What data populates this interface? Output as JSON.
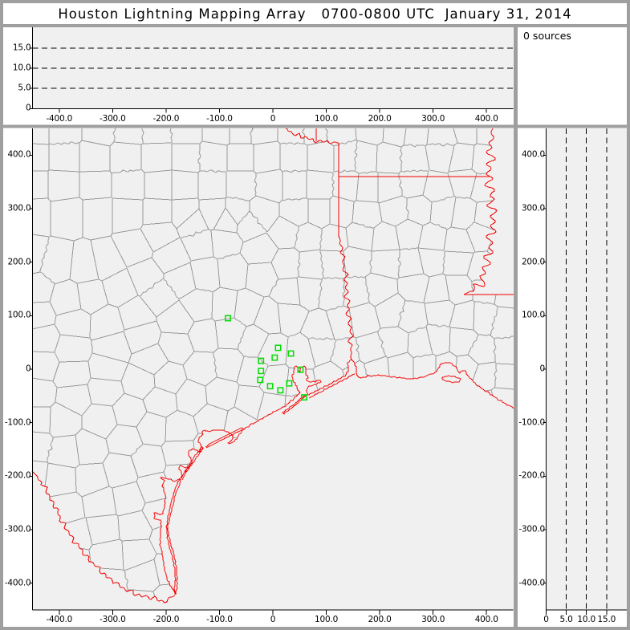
{
  "window": {
    "title": "Houston Lightning Mapping Array   0700-0800 UTC  January 31, 2014"
  },
  "sources_panel": {
    "label": "0 sources"
  },
  "colors": {
    "frame": "#9f9f9f",
    "panel": "#ffffff",
    "plot_bg": "#f0f0f0",
    "county_line": "#999999",
    "state_line": "#f40000",
    "station": "#00dd00",
    "axis": "#000000",
    "text": "#000000"
  },
  "alt_time_panel": {
    "y_ticks": [
      {
        "v": 0,
        "label": "0"
      },
      {
        "v": 5,
        "label": "5.0"
      },
      {
        "v": 10,
        "label": "10.0"
      },
      {
        "v": 15,
        "label": "15.0"
      }
    ],
    "x_ticks": [
      {
        "v": -400,
        "label": "-400.0"
      },
      {
        "v": -300,
        "label": "-300.0"
      },
      {
        "v": -200,
        "label": "-200.0"
      },
      {
        "v": -100,
        "label": "-100.0"
      },
      {
        "v": 0,
        "label": "0"
      },
      {
        "v": 100,
        "label": "100.0"
      },
      {
        "v": 200,
        "label": "200.0"
      },
      {
        "v": 300,
        "label": "300.0"
      },
      {
        "v": 400,
        "label": "400.0"
      }
    ],
    "dashed_altitudes_km": [
      5,
      10,
      15
    ],
    "alt_range_km": [
      0,
      20.2
    ],
    "x_range_km": [
      -450,
      450
    ]
  },
  "map_panel": {
    "x_ticks": [
      {
        "v": -400,
        "label": "-400.0"
      },
      {
        "v": -300,
        "label": "-300.0"
      },
      {
        "v": -200,
        "label": "-200.0"
      },
      {
        "v": -100,
        "label": "-100.0"
      },
      {
        "v": 0,
        "label": "0"
      },
      {
        "v": 100,
        "label": "100.0"
      },
      {
        "v": 200,
        "label": "200.0"
      },
      {
        "v": 300,
        "label": "300.0"
      },
      {
        "v": 400,
        "label": "400.0"
      }
    ],
    "y_ticks": [
      {
        "v": 400,
        "label": "400.0"
      },
      {
        "v": 300,
        "label": "300.0"
      },
      {
        "v": 200,
        "label": "200.0"
      },
      {
        "v": 100,
        "label": "100.0"
      },
      {
        "v": 0,
        "label": "0"
      },
      {
        "v": -100,
        "label": "-100.0"
      },
      {
        "v": -200,
        "label": "-200.0"
      },
      {
        "v": -300,
        "label": "-300.0"
      },
      {
        "v": -400,
        "label": "-400.0"
      }
    ],
    "x_range_km": [
      -450,
      450
    ],
    "y_range_km": [
      -450,
      450
    ]
  },
  "alt_lat_panel": {
    "x_ticks": [
      {
        "v": 0,
        "label": "0"
      },
      {
        "v": 5,
        "label": "5.0"
      },
      {
        "v": 10,
        "label": "10.0"
      },
      {
        "v": 15,
        "label": "15.0"
      }
    ],
    "y_ticks": [
      {
        "v": 400,
        "label": "400.0"
      },
      {
        "v": 300,
        "label": "300.0"
      },
      {
        "v": 200,
        "label": "200.0"
      },
      {
        "v": 100,
        "label": "100.0"
      },
      {
        "v": 0,
        "label": "0"
      },
      {
        "v": -100,
        "label": "-100.0"
      },
      {
        "v": -200,
        "label": "-200.0"
      },
      {
        "v": -300,
        "label": "-300.0"
      },
      {
        "v": -400,
        "label": "-400.0"
      }
    ],
    "dashed_altitudes_km": [
      5,
      10,
      15
    ],
    "alt_range_km": [
      0,
      20.2
    ],
    "y_range_km": [
      -450,
      450
    ]
  },
  "chart_data": {
    "type": "scatter",
    "title": "Houston Lightning Mapping Array   0700-0800 UTC  January 31, 2014",
    "source_count": 0,
    "series": [
      {
        "name": "lightning_sources",
        "points": []
      }
    ],
    "stations_km": [
      [
        -84.1,
        95.2
      ],
      [
        9.8,
        39.9
      ],
      [
        33.8,
        29.2
      ],
      [
        3.5,
        21.6
      ],
      [
        -22.2,
        15.6
      ],
      [
        -22.2,
        -3.5
      ],
      [
        51.7,
        -1.1
      ],
      [
        -23.6,
        -20.1
      ],
      [
        30.7,
        -26.6
      ],
      [
        -5.1,
        -31.8
      ],
      [
        14.1,
        -39.5
      ],
      [
        58.6,
        -52.7
      ]
    ],
    "panels": {
      "altitude_vs_ew": {
        "x_range_km": [
          -450,
          450
        ],
        "alt_range_km": [
          0,
          20.2
        ],
        "dashed_gridlines_km": [
          5,
          10,
          15
        ]
      },
      "plan_view_map": {
        "x_range_km": [
          -450,
          450
        ],
        "y_range_km": [
          -450,
          450
        ],
        "features": [
          "texas-counties",
          "state-borders",
          "gulf-coastline",
          "lma-stations"
        ]
      },
      "altitude_vs_ns": {
        "alt_range_km": [
          0,
          20.2
        ],
        "y_range_km": [
          -450,
          450
        ],
        "dashed_gridlines_km": [
          5,
          10,
          15
        ]
      },
      "histogram_box": {
        "text": "0 sources"
      }
    }
  }
}
